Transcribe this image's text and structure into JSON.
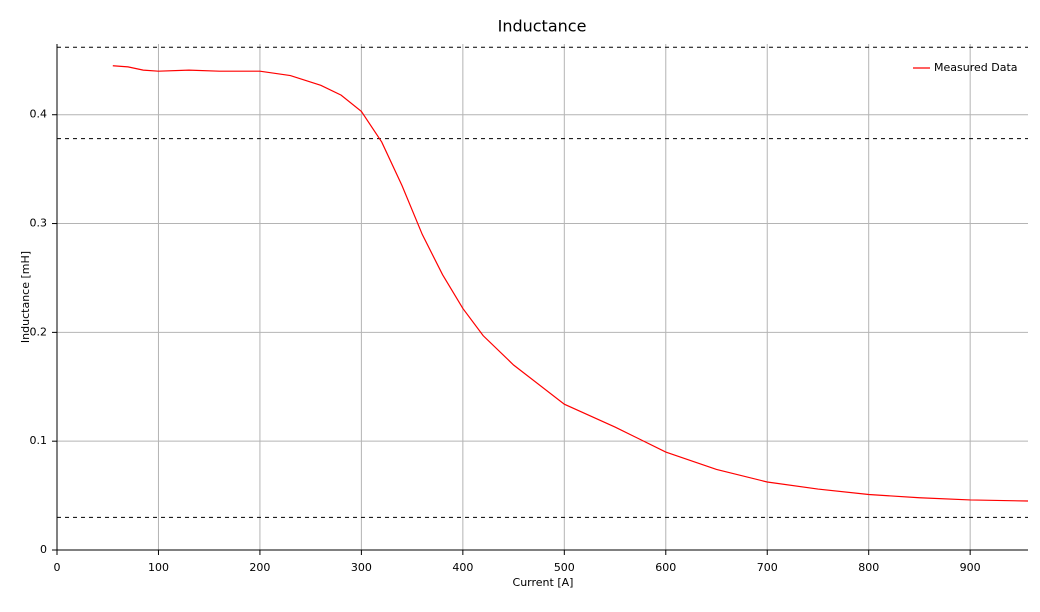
{
  "chart_data": {
    "type": "line",
    "title": "Inductance",
    "x_label": "Current [A]",
    "y_label": "Inductance [mH]",
    "x": [
      55,
      70,
      85,
      100,
      130,
      160,
      200,
      230,
      260,
      280,
      300,
      320,
      340,
      360,
      380,
      400,
      420,
      450,
      500,
      550,
      600,
      650,
      700,
      750,
      800,
      850,
      900,
      957
    ],
    "series": [
      {
        "name": "Measured Data",
        "color": "#ff0000",
        "values": [
          0.445,
          0.444,
          0.441,
          0.44,
          0.441,
          0.44,
          0.44,
          0.436,
          0.427,
          0.418,
          0.403,
          0.375,
          0.335,
          0.29,
          0.253,
          0.222,
          0.197,
          0.17,
          0.134,
          0.113,
          0.09,
          0.074,
          0.0625,
          0.056,
          0.051,
          0.048,
          0.046,
          0.045
        ]
      }
    ],
    "xlim": [
      0,
      957
    ],
    "ylim": [
      0,
      0.465
    ],
    "xticks": [
      0,
      100,
      200,
      300,
      400,
      500,
      600,
      700,
      800,
      900
    ],
    "yticks": [
      0,
      0.1,
      0.2,
      0.3,
      0.4
    ],
    "reference_lines": [
      0.462,
      0.378,
      0.03
    ],
    "grid": true,
    "legend": "upper right"
  }
}
